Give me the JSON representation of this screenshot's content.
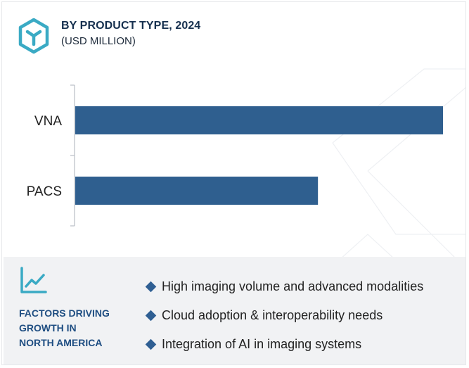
{
  "header": {
    "title": "BY PRODUCT TYPE, 2024",
    "subtitle": "(USD MILLION)",
    "logo_icon": "hexagon-cube-icon"
  },
  "chart_data": {
    "type": "bar",
    "orientation": "horizontal",
    "categories": [
      "VNA",
      "PACS"
    ],
    "values": [
      100,
      66
    ],
    "value_scale": "relative (no axis values printed)",
    "bar_color": "#2f5f8f",
    "title": "BY PRODUCT TYPE, 2024",
    "subtitle": "(USD MILLION)",
    "grid": false,
    "legend": "none"
  },
  "footer": {
    "icon": "line-chart-icon",
    "title": "FACTORS DRIVING\nGROWTH IN\nNORTH AMERICA",
    "factors": [
      "High imaging volume and advanced modalities",
      "Cloud adoption & interoperability needs",
      "Integration of AI in imaging systems"
    ]
  },
  "colors": {
    "accent": "#3aaac4",
    "bar": "#2f5f8f",
    "title": "#16304f",
    "factors_title": "#1f4e82",
    "footer_bg": "#f1f2f4"
  }
}
